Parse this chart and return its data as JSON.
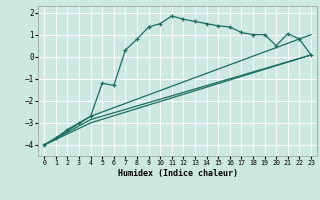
{
  "xlabel": "Humidex (Indice chaleur)",
  "bg_color": "#cce8e0",
  "grid_color": "#ffffff",
  "line_color": "#1a6e60",
  "xlim": [
    -0.5,
    23.5
  ],
  "ylim": [
    -4.5,
    2.3
  ],
  "xticks": [
    0,
    1,
    2,
    3,
    4,
    5,
    6,
    7,
    8,
    9,
    10,
    11,
    12,
    13,
    14,
    15,
    16,
    17,
    18,
    19,
    20,
    21,
    22,
    23
  ],
  "yticks": [
    -4,
    -3,
    -2,
    -1,
    0,
    1,
    2
  ],
  "curve1_x": [
    0,
    1,
    2,
    3,
    4,
    5,
    6,
    7,
    8,
    9,
    10,
    11,
    12,
    13,
    14,
    15,
    16,
    17,
    18,
    19,
    20,
    21,
    22,
    23
  ],
  "curve1_y": [
    -4.0,
    -3.7,
    -3.3,
    -3.0,
    -2.7,
    -1.2,
    -1.3,
    0.3,
    0.8,
    1.35,
    1.5,
    1.85,
    1.7,
    1.6,
    1.5,
    1.4,
    1.35,
    1.1,
    1.0,
    1.0,
    0.5,
    1.05,
    0.8,
    0.08
  ],
  "curve2_x": [
    0,
    4,
    23
  ],
  "curve2_y": [
    -4.0,
    -3.0,
    0.08
  ],
  "curve3_x": [
    0,
    4,
    23
  ],
  "curve3_y": [
    -4.0,
    -2.85,
    0.08
  ],
  "curve4_x": [
    0,
    4,
    23
  ],
  "curve4_y": [
    -4.0,
    -2.7,
    1.0
  ]
}
